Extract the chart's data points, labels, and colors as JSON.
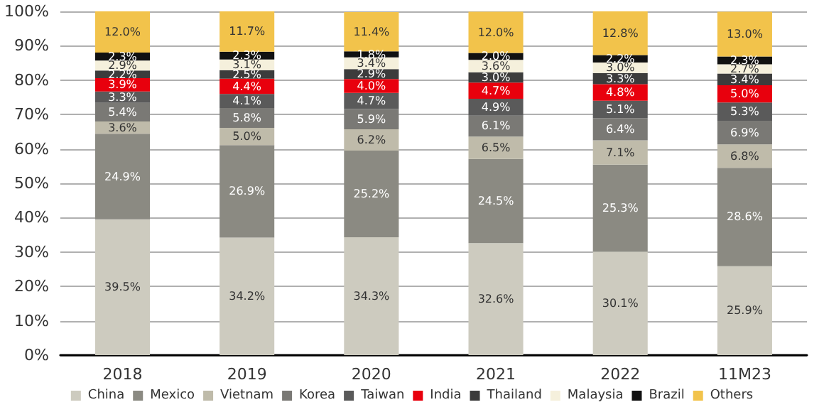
{
  "chart_data": {
    "type": "bar",
    "stacked": true,
    "categories": [
      "2018",
      "2019",
      "2020",
      "2021",
      "2022",
      "11M23"
    ],
    "ylim": [
      0,
      100
    ],
    "yticks": [
      {
        "value": 0,
        "label": "0%"
      },
      {
        "value": 10,
        "label": "10%"
      },
      {
        "value": 20,
        "label": "20%"
      },
      {
        "value": 30,
        "label": "30%"
      },
      {
        "value": 40,
        "label": "40%"
      },
      {
        "value": 50,
        "label": "50%"
      },
      {
        "value": 60,
        "label": "60%"
      },
      {
        "value": 70,
        "label": "70%"
      },
      {
        "value": 80,
        "label": "80%"
      },
      {
        "value": 90,
        "label": "90%"
      },
      {
        "value": 100,
        "label": "100%"
      }
    ],
    "grid": "y",
    "legend": "bottom",
    "series": [
      {
        "name": "China",
        "color": "#cdcbbf",
        "values": [
          39.5,
          34.2,
          34.3,
          32.6,
          30.1,
          25.9
        ],
        "value_labels": [
          "39.5%",
          "34.2%",
          "34.3%",
          "32.6%",
          "30.1%",
          "25.9%"
        ]
      },
      {
        "name": "Mexico",
        "color": "#8b8a82",
        "values": [
          24.9,
          26.9,
          25.2,
          24.5,
          25.3,
          28.6
        ],
        "value_labels": [
          "24.9%",
          "26.9%",
          "25.2%",
          "24.5%",
          "25.3%",
          "28.6%"
        ]
      },
      {
        "name": "Vietnam",
        "color": "#bfbbaa",
        "values": [
          3.6,
          5.0,
          6.2,
          6.5,
          7.1,
          6.8
        ],
        "value_labels": [
          "3.6%",
          "5.0%",
          "6.2%",
          "6.5%",
          "7.1%",
          "6.8%"
        ]
      },
      {
        "name": "Korea",
        "color": "#7a7975",
        "values": [
          5.4,
          5.8,
          5.9,
          6.1,
          6.4,
          6.9
        ],
        "value_labels": [
          "5.4%",
          "5.8%",
          "5.9%",
          "6.1%",
          "6.4%",
          "6.9%"
        ]
      },
      {
        "name": "Taiwan",
        "color": "#5a5a5a",
        "values": [
          3.3,
          4.1,
          4.7,
          4.9,
          5.1,
          5.3
        ],
        "value_labels": [
          "3.3%",
          "4.1%",
          "4.7%",
          "4.9%",
          "5.1%",
          "5.3%"
        ]
      },
      {
        "name": "India",
        "color": "#e8000d",
        "values": [
          3.9,
          4.4,
          4.0,
          4.7,
          4.8,
          5.0
        ],
        "value_labels": [
          "3.9%",
          "4.4%",
          "4.0%",
          "4.7%",
          "4.8%",
          "5.0%"
        ]
      },
      {
        "name": "Thailand",
        "color": "#3c3c3c",
        "values": [
          2.2,
          2.5,
          2.9,
          3.0,
          3.3,
          3.4
        ],
        "value_labels": [
          "2.2%",
          "2.5%",
          "2.9%",
          "3.0%",
          "3.3%",
          "3.4%"
        ]
      },
      {
        "name": "Malaysia",
        "color": "#f5f0dc",
        "values": [
          2.9,
          3.1,
          3.4,
          3.6,
          3.0,
          2.7
        ],
        "value_labels": [
          "2.9%",
          "3.1%",
          "3.4%",
          "3.6%",
          "3.0%",
          "2.7%"
        ]
      },
      {
        "name": "Brazil",
        "color": "#111111",
        "values": [
          2.3,
          2.3,
          1.8,
          2.0,
          2.2,
          2.3
        ],
        "value_labels": [
          "2.3%",
          "2.3%",
          "1.8%",
          "2.0%",
          "2.2%",
          "2.3%"
        ]
      },
      {
        "name": "Others",
        "color": "#f2c34b",
        "values": [
          12.0,
          11.7,
          11.4,
          12.0,
          12.8,
          13.0
        ],
        "value_labels": [
          "12.0%",
          "11.7%",
          "11.4%",
          "12.0%",
          "12.8%",
          "13.0%"
        ]
      }
    ]
  }
}
